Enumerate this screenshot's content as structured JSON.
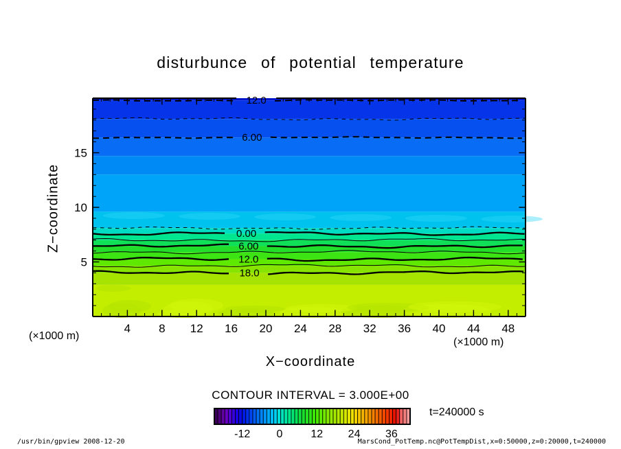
{
  "footer": {
    "left": "/usr/bin/gpview  2008-12-20",
    "right": "MarsCond_PotTemp.nc@PotTempDist,x=0:50000,z=0:20000,t=240000"
  },
  "chart_data": {
    "type": "filled-contour",
    "title": "disturbunce of potential temperature",
    "xlabel": "X−coordinate",
    "ylabel": "Z−coordinate",
    "x_unit_label": "(×1000 m)",
    "y_unit_label": "(×1000 m)",
    "contour_interval_label": "CONTOUR INTERVAL = 3.000E+00",
    "time_label": "t=240000 s",
    "xlim": [
      0,
      50
    ],
    "ylim": [
      0,
      20
    ],
    "x_ticks": [
      4,
      8,
      12,
      16,
      20,
      24,
      28,
      32,
      36,
      40,
      44,
      48
    ],
    "x_minor_step": 1,
    "y_ticks": [
      5,
      10,
      15
    ],
    "y_minor_step": 1,
    "contour_interval": 3.0,
    "contours": [
      {
        "value": -12,
        "label": "12.0",
        "style": "dashed-thick",
        "z": 19.8,
        "label_frac": 0.378
      },
      {
        "value": -9,
        "label": null,
        "style": "dashed-thin",
        "z": 18.1,
        "label_frac": null
      },
      {
        "value": -6,
        "label": "6.00",
        "style": "dashed-thick",
        "z": 16.4,
        "label_frac": 0.368
      },
      {
        "value": -3,
        "label": null,
        "style": "dashed-thin",
        "z": 8.1,
        "label_frac": null
      },
      {
        "value": 0,
        "label": "0.00",
        "style": "solid-thick",
        "z": 7.6,
        "label_frac": 0.355
      },
      {
        "value": 3,
        "label": null,
        "style": "solid-thin",
        "z": 7.0,
        "label_frac": null
      },
      {
        "value": 6,
        "label": "6.00",
        "style": "solid-thick",
        "z": 6.45,
        "label_frac": 0.36
      },
      {
        "value": 9,
        "label": null,
        "style": "solid-thin",
        "z": 5.9,
        "label_frac": null
      },
      {
        "value": 12,
        "label": "12.0",
        "style": "solid-thick",
        "z": 5.25,
        "label_frac": 0.36
      },
      {
        "value": 15,
        "label": null,
        "style": "solid-thin",
        "z": 4.65,
        "label_frac": null
      },
      {
        "value": 18,
        "label": "18.0",
        "style": "solid-thick",
        "z": 4.0,
        "label_frac": 0.362
      }
    ],
    "fill_bands": [
      {
        "z_top": 20.0,
        "z_bottom": 19.8,
        "color": "#0014cc"
      },
      {
        "z_top": 19.8,
        "z_bottom": 18.1,
        "color": "#0634e8"
      },
      {
        "z_top": 18.1,
        "z_bottom": 16.4,
        "color": "#0550ee"
      },
      {
        "z_top": 16.4,
        "z_bottom": 14.7,
        "color": "#086cf4"
      },
      {
        "z_top": 14.7,
        "z_bottom": 13.0,
        "color": "#008af6"
      },
      {
        "z_top": 13.0,
        "z_bottom": 9.6,
        "color": "#00a4f8"
      },
      {
        "z_top": 9.6,
        "z_bottom": 8.1,
        "color": "#00c2ee"
      },
      {
        "z_top": 8.1,
        "z_bottom": 7.6,
        "color": "#00dcc4"
      },
      {
        "z_top": 7.6,
        "z_bottom": 7.0,
        "color": "#00e690"
      },
      {
        "z_top": 7.0,
        "z_bottom": 6.45,
        "color": "#10df58"
      },
      {
        "z_top": 6.45,
        "z_bottom": 5.9,
        "color": "#22dd2a"
      },
      {
        "z_top": 5.9,
        "z_bottom": 5.25,
        "color": "#3ce414"
      },
      {
        "z_top": 5.25,
        "z_bottom": 4.65,
        "color": "#5fe800"
      },
      {
        "z_top": 4.65,
        "z_bottom": 4.0,
        "color": "#87e400"
      },
      {
        "z_top": 4.0,
        "z_bottom": 2.9,
        "color": "#a6e300"
      },
      {
        "z_top": 2.9,
        "z_bottom": 0.0,
        "color": "#c4ee00"
      }
    ],
    "colorbar": {
      "ticks": [
        -12,
        0,
        12,
        24,
        36
      ],
      "vmin": -21,
      "vmax": 42,
      "cells": 56,
      "stops": [
        [
          0.0,
          "#2e0048"
        ],
        [
          0.035,
          "#58008c"
        ],
        [
          0.06,
          "#6a00c0"
        ],
        [
          0.09,
          "#4400dc"
        ],
        [
          0.12,
          "#1400e4"
        ],
        [
          0.15,
          "#0018e8"
        ],
        [
          0.19,
          "#0048f0"
        ],
        [
          0.23,
          "#0078f6"
        ],
        [
          0.27,
          "#00a2f8"
        ],
        [
          0.31,
          "#00ccf4"
        ],
        [
          0.335,
          "#00e2d0"
        ],
        [
          0.37,
          "#00e8a0"
        ],
        [
          0.41,
          "#00e468"
        ],
        [
          0.45,
          "#18dc30"
        ],
        [
          0.49,
          "#2ee218"
        ],
        [
          0.52,
          "#44e800"
        ],
        [
          0.56,
          "#70e800"
        ],
        [
          0.61,
          "#a0e800"
        ],
        [
          0.66,
          "#cce800"
        ],
        [
          0.7,
          "#ece400"
        ],
        [
          0.74,
          "#f4c400"
        ],
        [
          0.78,
          "#f4a000"
        ],
        [
          0.82,
          "#f47800"
        ],
        [
          0.86,
          "#f45000"
        ],
        [
          0.9,
          "#f02800"
        ],
        [
          0.93,
          "#e00800"
        ],
        [
          0.955,
          "#f06060"
        ],
        [
          1.0,
          "#f4a8a8"
        ]
      ]
    }
  }
}
